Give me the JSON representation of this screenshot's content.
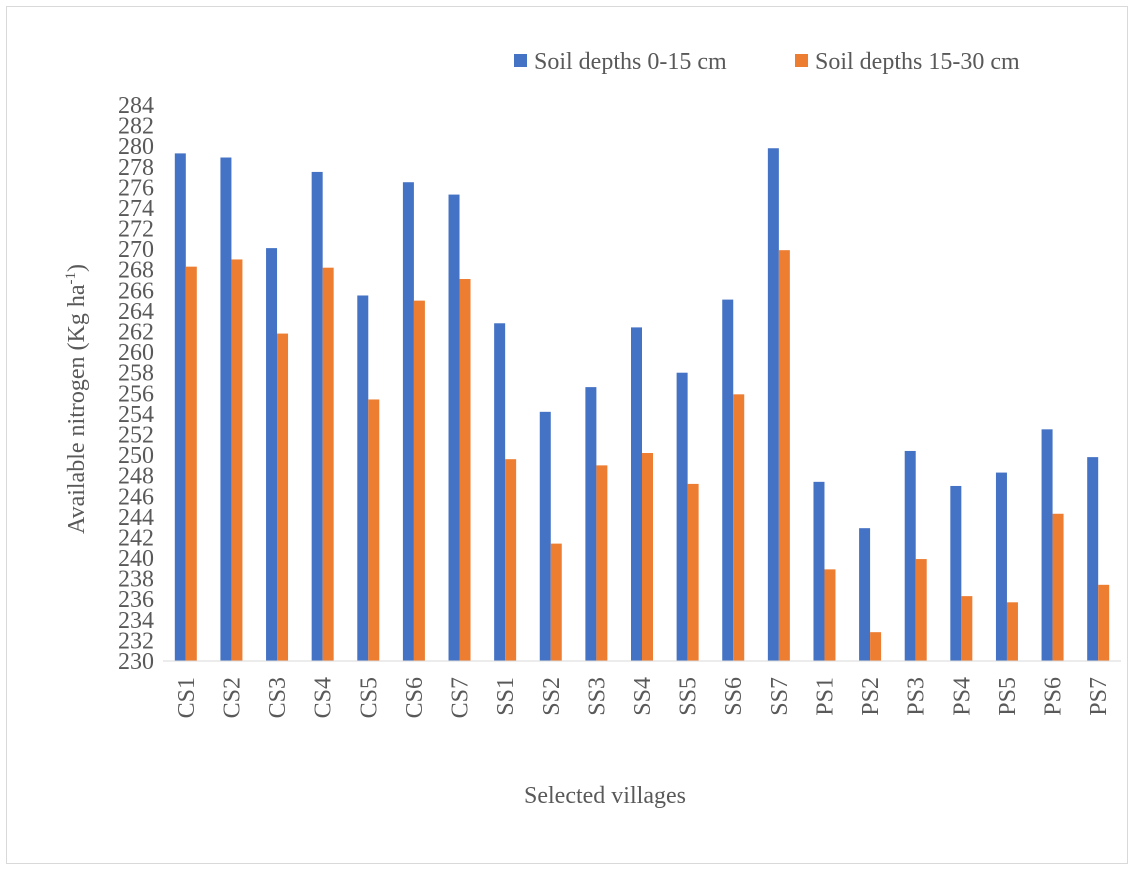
{
  "chart_data": {
    "type": "bar",
    "title": "",
    "xlabel": "Selected villages",
    "ylabel": "Available nitrogen (Kg ha",
    "ylabel_superscript": "-1",
    "ylabel_suffix": ")",
    "ylim": [
      230,
      284
    ],
    "y_tick_step": 2,
    "grid": false,
    "legend_position": "top-right",
    "categories": [
      "CS1",
      "CS2",
      "CS3",
      "CS4",
      "CS5",
      "CS6",
      "CS7",
      "SS1",
      "SS2",
      "SS3",
      "SS4",
      "SS5",
      "SS6",
      "SS7",
      "PS1",
      "PS2",
      "PS3",
      "PS4",
      "PS5",
      "PS6",
      "PS7"
    ],
    "series": [
      {
        "name": "Soil depths 0-15 cm",
        "color": "#4472c4",
        "values": [
          279.3,
          278.9,
          270.1,
          277.5,
          265.5,
          276.5,
          275.3,
          262.8,
          254.2,
          256.6,
          262.4,
          258.0,
          265.1,
          279.8,
          247.4,
          242.9,
          250.4,
          247.0,
          248.3,
          252.5,
          249.8
        ]
      },
      {
        "name": "Soil depths 15-30 cm",
        "color": "#ed7d31",
        "values": [
          268.3,
          269.0,
          261.8,
          268.2,
          255.4,
          265.0,
          267.1,
          249.6,
          241.4,
          249.0,
          250.2,
          247.2,
          255.9,
          269.9,
          238.9,
          232.8,
          239.9,
          236.3,
          235.7,
          244.3,
          237.4
        ]
      }
    ]
  }
}
